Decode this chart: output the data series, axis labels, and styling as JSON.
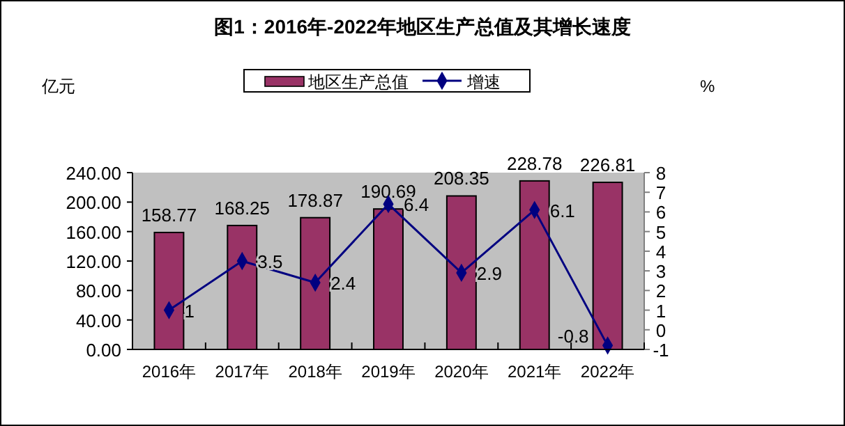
{
  "chart_data": {
    "type": "bar",
    "title": "图1：2016年-2022年地区生产总值及其增长速度",
    "ylabel": "亿元",
    "y2label": "%",
    "categories": [
      "2016年",
      "2017年",
      "2018年",
      "2019年",
      "2020年",
      "2021年",
      "2022年"
    ],
    "series": [
      {
        "name": "地区生产总值",
        "color": "#993366",
        "values": [
          158.77,
          168.25,
          178.87,
          190.69,
          208.35,
          228.78,
          226.81
        ]
      },
      {
        "name": "增速",
        "type": "line",
        "axis": "y2",
        "color": "#000080",
        "marker": "diamond",
        "values": [
          1,
          3.5,
          2.4,
          6.4,
          2.9,
          6.1,
          -0.8
        ]
      }
    ],
    "ylim": [
      0,
      240
    ],
    "yticks": [
      {
        "value": 0,
        "label": "0.00"
      },
      {
        "value": 40,
        "label": "40.00"
      },
      {
        "value": 80,
        "label": "80.00"
      },
      {
        "value": 120,
        "label": "120.00"
      },
      {
        "value": 160,
        "label": "160.00"
      },
      {
        "value": 200,
        "label": "200.00"
      },
      {
        "value": 240,
        "label": "240.00"
      }
    ],
    "y2lim": [
      -1,
      8
    ],
    "y2ticks": [
      -1,
      0,
      1,
      2,
      3,
      4,
      5,
      6,
      7,
      8
    ],
    "data_labels": true,
    "legend": "top",
    "grid": false
  }
}
